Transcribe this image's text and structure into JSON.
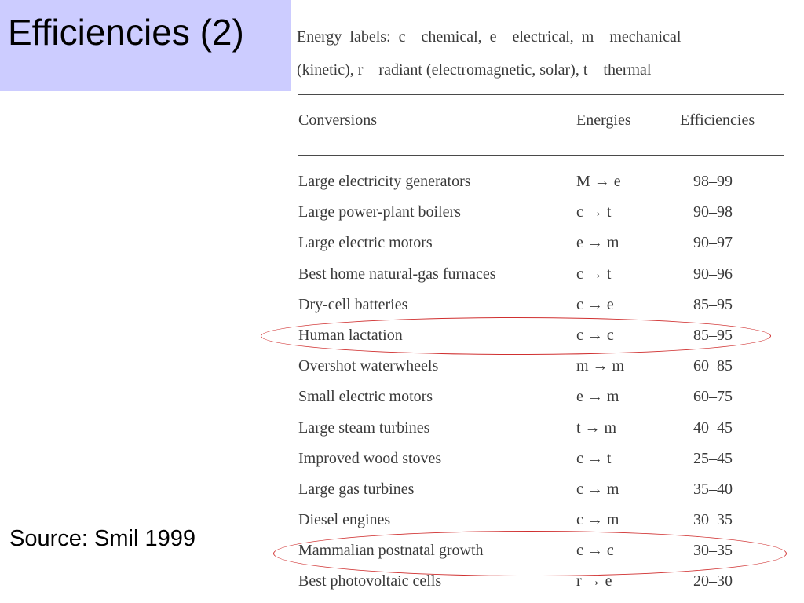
{
  "slide": {
    "title": "Efficiencies (2)",
    "source": "Source: Smil 1999"
  },
  "legend": {
    "line1": "Energy labels: c—chemical, e—electrical, m—mechanical",
    "line2": "(kinetic), r—radiant (electromagnetic, solar), t—thermal"
  },
  "table": {
    "headers": {
      "conversions": "Conversions",
      "energies": "Energies",
      "efficiencies": "Efficiencies"
    },
    "rows": [
      {
        "conversion": "Large electricity generators",
        "energies": "M → e",
        "efficiency": "98–99"
      },
      {
        "conversion": "Large power-plant boilers",
        "energies": "c → t",
        "efficiency": "90–98"
      },
      {
        "conversion": "Large electric motors",
        "energies": "e → m",
        "efficiency": "90–97"
      },
      {
        "conversion": "Best home natural-gas furnaces",
        "energies": "c → t",
        "efficiency": "90–96"
      },
      {
        "conversion": "Dry-cell batteries",
        "energies": "c → e",
        "efficiency": "85–95"
      },
      {
        "conversion": "Human lactation",
        "energies": "c → c",
        "efficiency": "85–95"
      },
      {
        "conversion": "Overshot waterwheels",
        "energies": "m → m",
        "efficiency": "60–85"
      },
      {
        "conversion": "Small electric motors",
        "energies": "e → m",
        "efficiency": "60–75"
      },
      {
        "conversion": "Large steam turbines",
        "energies": "t → m",
        "efficiency": "40–45"
      },
      {
        "conversion": "Improved wood stoves",
        "energies": "c → t",
        "efficiency": "25–45"
      },
      {
        "conversion": "Large gas turbines",
        "energies": "c → m",
        "efficiency": "35–40"
      },
      {
        "conversion": "Diesel engines",
        "energies": "c → m",
        "efficiency": "30–35"
      },
      {
        "conversion": "Mammalian postnatal growth",
        "energies": "c → c",
        "efficiency": "30–35"
      },
      {
        "conversion": "Best photovoltaic cells",
        "energies": "r → e",
        "efficiency": "20–30"
      }
    ]
  },
  "colors": {
    "title_background": "#ccccff",
    "highlight_ring": "#d03030"
  }
}
